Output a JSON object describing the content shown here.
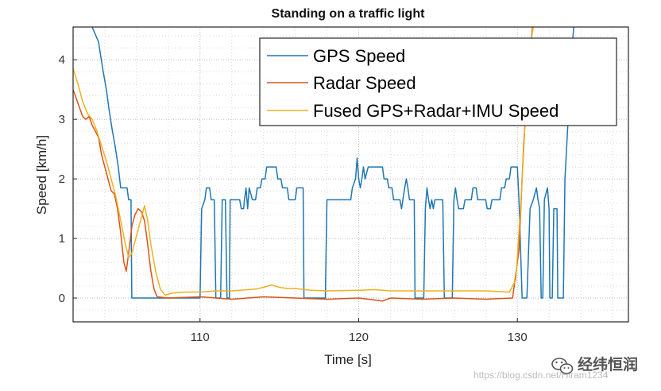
{
  "chart_data": {
    "type": "line",
    "title": "Standing on a traffic light",
    "xlabel": "Time [s]",
    "ylabel": "Speed [km/h]",
    "xlim": [
      102,
      137
    ],
    "ylim": [
      -0.4,
      4.55
    ],
    "xticks": [
      110,
      120,
      130
    ],
    "yticks": [
      0,
      1,
      2,
      3,
      4
    ],
    "grid": "minor-dotted",
    "legend": "top-right",
    "series": [
      {
        "name": "GPS Speed",
        "color": "#1f77b4",
        "points": [
          [
            103.2,
            4.55
          ],
          [
            103.6,
            4.3
          ],
          [
            103.9,
            3.8
          ],
          [
            104.1,
            3.5
          ],
          [
            104.25,
            3.2
          ],
          [
            104.45,
            2.85
          ],
          [
            104.65,
            2.55
          ],
          [
            104.85,
            2.2
          ],
          [
            105.0,
            1.85
          ],
          [
            105.4,
            1.85
          ],
          [
            105.5,
            1.65
          ],
          [
            105.65,
            1.65
          ],
          [
            105.7,
            0
          ],
          [
            110.0,
            0
          ],
          [
            110.1,
            1.5
          ],
          [
            110.3,
            1.65
          ],
          [
            110.4,
            1.85
          ],
          [
            110.6,
            1.85
          ],
          [
            110.7,
            1.65
          ],
          [
            110.9,
            1.65
          ],
          [
            111.0,
            0
          ],
          [
            111.3,
            0
          ],
          [
            111.4,
            1.65
          ],
          [
            111.6,
            1.65
          ],
          [
            111.7,
            0
          ],
          [
            111.85,
            0
          ],
          [
            111.9,
            1.65
          ],
          [
            112.5,
            1.65
          ],
          [
            112.6,
            1.5
          ],
          [
            112.75,
            1.5
          ],
          [
            112.8,
            1.65
          ],
          [
            112.9,
            1.85
          ],
          [
            113.0,
            1.5
          ],
          [
            113.1,
            1.85
          ],
          [
            113.3,
            1.65
          ],
          [
            113.5,
            1.65
          ],
          [
            113.6,
            1.85
          ],
          [
            113.8,
            1.85
          ],
          [
            113.9,
            2.0
          ],
          [
            114.1,
            2.0
          ],
          [
            114.2,
            2.2
          ],
          [
            114.8,
            2.2
          ],
          [
            114.9,
            2.0
          ],
          [
            115.1,
            2.0
          ],
          [
            115.2,
            1.85
          ],
          [
            115.5,
            1.85
          ],
          [
            115.6,
            1.65
          ],
          [
            116.0,
            1.65
          ],
          [
            116.1,
            1.85
          ],
          [
            116.5,
            1.85
          ],
          [
            116.55,
            0
          ],
          [
            117.9,
            0
          ],
          [
            118.0,
            1.65
          ],
          [
            119.5,
            1.65
          ],
          [
            119.6,
            1.85
          ],
          [
            119.8,
            2.0
          ],
          [
            119.9,
            2.35
          ],
          [
            120.0,
            2.0
          ],
          [
            120.1,
            1.85
          ],
          [
            120.2,
            2.0
          ],
          [
            120.3,
            2.2
          ],
          [
            120.4,
            2.0
          ],
          [
            120.6,
            2.2
          ],
          [
            121.5,
            2.2
          ],
          [
            121.6,
            2.0
          ],
          [
            121.8,
            2.0
          ],
          [
            121.9,
            1.85
          ],
          [
            122.1,
            1.85
          ],
          [
            122.2,
            1.65
          ],
          [
            122.6,
            1.65
          ],
          [
            122.7,
            1.5
          ],
          [
            122.9,
            1.85
          ],
          [
            123.0,
            2.0
          ],
          [
            123.1,
            1.85
          ],
          [
            123.2,
            1.65
          ],
          [
            123.5,
            1.65
          ],
          [
            123.55,
            0
          ],
          [
            124.1,
            0
          ],
          [
            124.2,
            1.5
          ],
          [
            124.3,
            1.85
          ],
          [
            124.4,
            1.65
          ],
          [
            124.5,
            1.5
          ],
          [
            124.6,
            1.65
          ],
          [
            124.7,
            1.5
          ],
          [
            124.8,
            1.65
          ],
          [
            125.3,
            1.65
          ],
          [
            125.4,
            0
          ],
          [
            125.9,
            0
          ],
          [
            126.0,
            1.65
          ],
          [
            126.1,
            1.85
          ],
          [
            126.2,
            1.65
          ],
          [
            126.3,
            1.5
          ],
          [
            126.6,
            1.5
          ],
          [
            126.7,
            1.65
          ],
          [
            127.1,
            1.65
          ],
          [
            127.2,
            1.85
          ],
          [
            127.4,
            1.85
          ],
          [
            127.5,
            1.65
          ],
          [
            128.0,
            1.65
          ],
          [
            128.1,
            1.5
          ],
          [
            128.3,
            1.5
          ],
          [
            128.4,
            1.65
          ],
          [
            128.9,
            1.65
          ],
          [
            129.0,
            1.85
          ],
          [
            129.2,
            1.85
          ],
          [
            129.3,
            2.0
          ],
          [
            129.5,
            2.0
          ],
          [
            129.6,
            2.2
          ],
          [
            130.0,
            2.2
          ],
          [
            130.1,
            1.65
          ],
          [
            130.3,
            0
          ],
          [
            130.6,
            0
          ],
          [
            130.8,
            1.5
          ],
          [
            131.0,
            1.65
          ],
          [
            131.2,
            1.85
          ],
          [
            131.3,
            1.65
          ],
          [
            131.4,
            1.5
          ],
          [
            131.5,
            0
          ],
          [
            131.6,
            0
          ],
          [
            131.7,
            1.65
          ],
          [
            131.9,
            1.85
          ],
          [
            132.0,
            1.5
          ],
          [
            132.05,
            0
          ],
          [
            132.2,
            0
          ],
          [
            132.3,
            1.5
          ],
          [
            132.5,
            1.5
          ],
          [
            132.55,
            0
          ],
          [
            132.9,
            0
          ],
          [
            133.0,
            2.0
          ],
          [
            133.2,
            3.0
          ],
          [
            133.4,
            4.0
          ],
          [
            133.55,
            4.55
          ]
        ]
      },
      {
        "name": "Radar Speed",
        "color": "#d95319",
        "points": [
          [
            102.0,
            3.5
          ],
          [
            102.2,
            3.35
          ],
          [
            102.4,
            3.2
          ],
          [
            102.6,
            3.05
          ],
          [
            102.8,
            3.0
          ],
          [
            103.0,
            3.05
          ],
          [
            103.2,
            2.9
          ],
          [
            103.4,
            2.8
          ],
          [
            103.6,
            2.7
          ],
          [
            103.8,
            2.4
          ],
          [
            104.0,
            2.2
          ],
          [
            104.2,
            2.0
          ],
          [
            104.4,
            1.8
          ],
          [
            104.6,
            1.75
          ],
          [
            104.8,
            1.5
          ],
          [
            105.0,
            1.1
          ],
          [
            105.2,
            0.6
          ],
          [
            105.35,
            0.45
          ],
          [
            105.5,
            0.75
          ],
          [
            105.7,
            1.2
          ],
          [
            105.9,
            1.4
          ],
          [
            106.1,
            1.5
          ],
          [
            106.3,
            1.45
          ],
          [
            106.5,
            1.3
          ],
          [
            106.7,
            0.9
          ],
          [
            106.9,
            0.45
          ],
          [
            107.1,
            0.15
          ],
          [
            107.3,
            0.02
          ],
          [
            108.0,
            0.0
          ],
          [
            110.0,
            0.02
          ],
          [
            112.0,
            -0.02
          ],
          [
            114.0,
            0.02
          ],
          [
            116.0,
            0.0
          ],
          [
            118.0,
            -0.02
          ],
          [
            120.0,
            0.0
          ],
          [
            121.5,
            -0.05
          ],
          [
            122.0,
            0.0
          ],
          [
            124.0,
            -0.02
          ],
          [
            126.0,
            0.0
          ],
          [
            128.0,
            -0.02
          ],
          [
            129.7,
            0.0
          ],
          [
            130.1,
            0.8
          ],
          [
            130.4,
            2.6
          ],
          [
            130.7,
            3.8
          ],
          [
            130.95,
            4.55
          ]
        ]
      },
      {
        "name": "Fused GPS+Radar+IMU Speed",
        "color": "#edb120",
        "points": [
          [
            102.0,
            3.85
          ],
          [
            102.3,
            3.6
          ],
          [
            102.6,
            3.3
          ],
          [
            102.9,
            3.1
          ],
          [
            103.2,
            3.0
          ],
          [
            103.5,
            2.8
          ],
          [
            103.8,
            2.55
          ],
          [
            104.1,
            2.3
          ],
          [
            104.4,
            2.0
          ],
          [
            104.7,
            1.7
          ],
          [
            105.0,
            1.3
          ],
          [
            105.3,
            0.9
          ],
          [
            105.5,
            0.68
          ],
          [
            105.7,
            0.75
          ],
          [
            105.9,
            0.95
          ],
          [
            106.1,
            1.15
          ],
          [
            106.3,
            1.35
          ],
          [
            106.5,
            1.55
          ],
          [
            106.7,
            1.3
          ],
          [
            106.9,
            0.9
          ],
          [
            107.2,
            0.45
          ],
          [
            107.5,
            0.15
          ],
          [
            107.8,
            0.05
          ],
          [
            108.2,
            0.08
          ],
          [
            109.0,
            0.1
          ],
          [
            110.0,
            0.1
          ],
          [
            111.0,
            0.12
          ],
          [
            112.0,
            0.12
          ],
          [
            113.0,
            0.14
          ],
          [
            113.5,
            0.15
          ],
          [
            114.0,
            0.18
          ],
          [
            114.5,
            0.22
          ],
          [
            115.0,
            0.18
          ],
          [
            115.5,
            0.16
          ],
          [
            116.0,
            0.16
          ],
          [
            117.0,
            0.13
          ],
          [
            118.0,
            0.12
          ],
          [
            120.0,
            0.13
          ],
          [
            121.0,
            0.14
          ],
          [
            122.0,
            0.12
          ],
          [
            124.0,
            0.12
          ],
          [
            126.0,
            0.12
          ],
          [
            128.0,
            0.12
          ],
          [
            129.5,
            0.1
          ],
          [
            129.9,
            0.3
          ],
          [
            130.2,
            1.5
          ],
          [
            130.5,
            3.0
          ],
          [
            130.8,
            4.2
          ],
          [
            131.0,
            4.55
          ]
        ]
      }
    ]
  },
  "watermark": {
    "url": "https://blog.csdn.net/Hiram1234",
    "brand": "经纬恒润",
    "icon": "wechat-icon"
  }
}
